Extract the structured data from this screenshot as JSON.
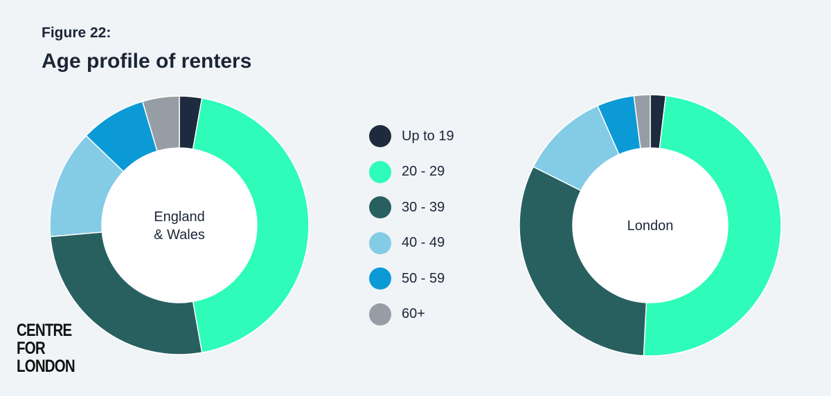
{
  "figure_label": "Figure 22:",
  "title": "Age profile of renters",
  "logo_lines": [
    "CENTRE",
    "FOR",
    "LONDON"
  ],
  "chart_data": [
    {
      "type": "pie",
      "donut": true,
      "center_label": [
        "England",
        "& Wales"
      ],
      "categories": [
        "Up to 19",
        "20 - 29",
        "30 - 39",
        "40 - 49",
        "50 - 59",
        "60+"
      ],
      "values": [
        2.8,
        44.4,
        26.4,
        13.6,
        8.2,
        4.6
      ],
      "colors": [
        "#1e2a3d",
        "#2efcb8",
        "#286060",
        "#84cbe6",
        "#0b9ad6",
        "#979da4"
      ]
    },
    {
      "type": "pie",
      "donut": true,
      "center_label": [
        "London"
      ],
      "categories": [
        "Up to 19",
        "20 - 29",
        "30 - 39",
        "40 - 49",
        "50 - 59",
        "60+"
      ],
      "values": [
        1.9,
        48.9,
        31.6,
        11.0,
        4.6,
        2.0
      ],
      "colors": [
        "#1e2a3d",
        "#2efcb8",
        "#286060",
        "#84cbe6",
        "#0b9ad6",
        "#979da4"
      ]
    }
  ],
  "legend": {
    "placement": "center",
    "items": [
      {
        "label": "Up to 19",
        "color": "#1e2a3d"
      },
      {
        "label": "20 - 29",
        "color": "#2efcb8"
      },
      {
        "label": "30 - 39",
        "color": "#286060"
      },
      {
        "label": "40 - 49",
        "color": "#84cbe6"
      },
      {
        "label": "50 - 59",
        "color": "#0b9ad6"
      },
      {
        "label": "60+",
        "color": "#979da4"
      }
    ]
  }
}
